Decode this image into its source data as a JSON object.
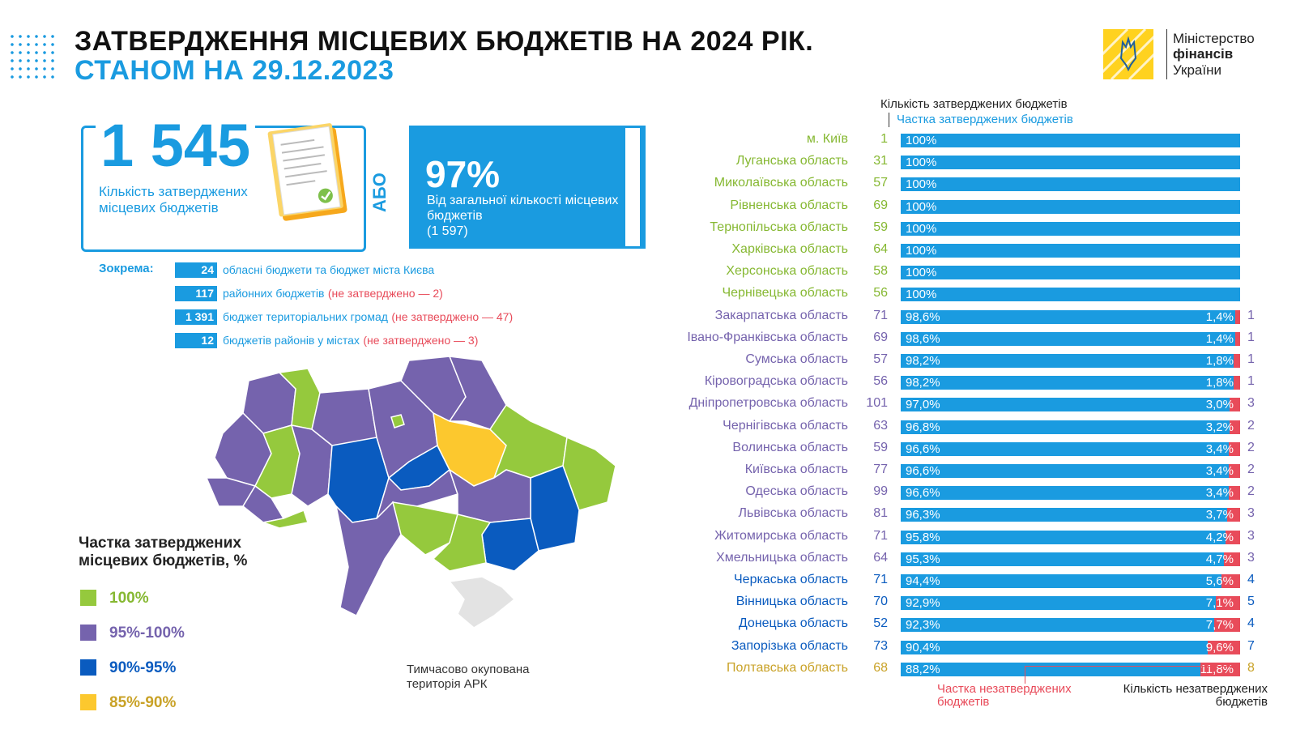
{
  "header": {
    "title_line1": "ЗАТВЕРДЖЕННЯ МІСЦЕВИХ БЮДЖЕТІВ НА 2024 РІК.",
    "title_line2": "СТАНОМ НА 29.12.2023"
  },
  "logo": {
    "line1": "Міністерство",
    "line2": "фінансів",
    "line3": "України",
    "icon": "trident-icon",
    "color": "#ffd21f"
  },
  "summary": {
    "count": "1 545",
    "count_label": "Кількість затверджених місцевих бюджетів",
    "or_label": "АБО",
    "share": "97%",
    "share_label": "Від загальної кількості місцевих бюджетів",
    "share_total": "(1 597)"
  },
  "breakdown": {
    "label": "Зокрема:",
    "items": [
      {
        "value": "24",
        "text": "обласні бюджети та бюджет міста Києва",
        "note": ""
      },
      {
        "value": "117",
        "text": "районних бюджетів",
        "note": "(не затверджено — 2)"
      },
      {
        "value": "1 391",
        "text": "бюджет територіальних громад",
        "note": "(не затверджено — 47)"
      },
      {
        "value": "12",
        "text": "бюджетів районів у містах",
        "note": "(не затверджено — 3)"
      }
    ]
  },
  "map": {
    "legend_title": "Частка затверджених місцевих бюджетів, %",
    "legend": [
      {
        "label": "100%",
        "color": "#95c93d",
        "text_color": "#86b832"
      },
      {
        "label": "95%-100%",
        "color": "#7563ad",
        "text_color": "#7563ad"
      },
      {
        "label": "90%-95%",
        "color": "#0a5bbf",
        "text_color": "#0a5bbf"
      },
      {
        "label": "85%-90%",
        "color": "#fcc82e",
        "text_color": "#c9a227"
      }
    ],
    "occupied_label_1": "Тимчасово окупована",
    "occupied_label_2": "територія АРК",
    "occupied_color": "#e3e3e3"
  },
  "colors": {
    "accent": "#1a9be0",
    "unapproved": "#e84b5a"
  },
  "chart_data": {
    "type": "bar",
    "orientation": "horizontal-stacked",
    "header_count": "Кількість затверджених бюджетів",
    "header_share": "Частка затверджених бюджетів",
    "footer_share_unapproved": "Частка незатверджених бюджетів",
    "footer_count_unapproved": "Кількість незатверджених бюджетів",
    "xlim": [
      0,
      100
    ],
    "rows": [
      {
        "region": "м. Київ",
        "count": "1",
        "approved": 100,
        "approved_label": "100%",
        "unapproved": 0,
        "unapproved_label": "",
        "not_approved": "",
        "group": "100"
      },
      {
        "region": "Луганська область",
        "count": "31",
        "approved": 100,
        "approved_label": "100%",
        "unapproved": 0,
        "unapproved_label": "",
        "not_approved": "",
        "group": "100"
      },
      {
        "region": "Миколаївська область",
        "count": "57",
        "approved": 100,
        "approved_label": "100%",
        "unapproved": 0,
        "unapproved_label": "",
        "not_approved": "",
        "group": "100"
      },
      {
        "region": "Рівненська область",
        "count": "69",
        "approved": 100,
        "approved_label": "100%",
        "unapproved": 0,
        "unapproved_label": "",
        "not_approved": "",
        "group": "100"
      },
      {
        "region": "Тернопільська область",
        "count": "59",
        "approved": 100,
        "approved_label": "100%",
        "unapproved": 0,
        "unapproved_label": "",
        "not_approved": "",
        "group": "100"
      },
      {
        "region": "Харківська область",
        "count": "64",
        "approved": 100,
        "approved_label": "100%",
        "unapproved": 0,
        "unapproved_label": "",
        "not_approved": "",
        "group": "100"
      },
      {
        "region": "Херсонська область",
        "count": "58",
        "approved": 100,
        "approved_label": "100%",
        "unapproved": 0,
        "unapproved_label": "",
        "not_approved": "",
        "group": "100"
      },
      {
        "region": "Чернівецька область",
        "count": "56",
        "approved": 100,
        "approved_label": "100%",
        "unapproved": 0,
        "unapproved_label": "",
        "not_approved": "",
        "group": "100"
      },
      {
        "region": "Закарпатська область",
        "count": "71",
        "approved": 98.6,
        "approved_label": "98,6%",
        "unapproved": 1.4,
        "unapproved_label": "1,4%",
        "not_approved": "1",
        "group": "95"
      },
      {
        "region": "Івано-Франківська область",
        "count": "69",
        "approved": 98.6,
        "approved_label": "98,6%",
        "unapproved": 1.4,
        "unapproved_label": "1,4%",
        "not_approved": "1",
        "group": "95"
      },
      {
        "region": "Сумська область",
        "count": "57",
        "approved": 98.2,
        "approved_label": "98,2%",
        "unapproved": 1.8,
        "unapproved_label": "1,8%",
        "not_approved": "1",
        "group": "95"
      },
      {
        "region": "Кіровоградська область",
        "count": "56",
        "approved": 98.2,
        "approved_label": "98,2%",
        "unapproved": 1.8,
        "unapproved_label": "1,8%",
        "not_approved": "1",
        "group": "95"
      },
      {
        "region": "Дніпропетровська область",
        "count": "101",
        "approved": 97.0,
        "approved_label": "97,0%",
        "unapproved": 3.0,
        "unapproved_label": "3,0%",
        "not_approved": "3",
        "group": "95"
      },
      {
        "region": "Чернігівська область",
        "count": "63",
        "approved": 96.8,
        "approved_label": "96,8%",
        "unapproved": 3.2,
        "unapproved_label": "3,2%",
        "not_approved": "2",
        "group": "95"
      },
      {
        "region": "Волинська область",
        "count": "59",
        "approved": 96.6,
        "approved_label": "96,6%",
        "unapproved": 3.4,
        "unapproved_label": "3,4%",
        "not_approved": "2",
        "group": "95"
      },
      {
        "region": "Київська область",
        "count": "77",
        "approved": 96.6,
        "approved_label": "96,6%",
        "unapproved": 3.4,
        "unapproved_label": "3,4%",
        "not_approved": "2",
        "group": "95"
      },
      {
        "region": "Одеська область",
        "count": "99",
        "approved": 96.6,
        "approved_label": "96,6%",
        "unapproved": 3.4,
        "unapproved_label": "3,4%",
        "not_approved": "2",
        "group": "95"
      },
      {
        "region": "Львівська область",
        "count": "81",
        "approved": 96.3,
        "approved_label": "96,3%",
        "unapproved": 3.7,
        "unapproved_label": "3,7%",
        "not_approved": "3",
        "group": "95"
      },
      {
        "region": "Житомирська область",
        "count": "71",
        "approved": 95.8,
        "approved_label": "95,8%",
        "unapproved": 4.2,
        "unapproved_label": "4,2%",
        "not_approved": "3",
        "group": "95"
      },
      {
        "region": "Хмельницька область",
        "count": "64",
        "approved": 95.3,
        "approved_label": "95,3%",
        "unapproved": 4.7,
        "unapproved_label": "4,7%",
        "not_approved": "3",
        "group": "95"
      },
      {
        "region": "Черкаська область",
        "count": "71",
        "approved": 94.4,
        "approved_label": "94,4%",
        "unapproved": 5.6,
        "unapproved_label": "5,6%",
        "not_approved": "4",
        "group": "90"
      },
      {
        "region": "Вінницька область",
        "count": "70",
        "approved": 92.9,
        "approved_label": "92,9%",
        "unapproved": 7.1,
        "unapproved_label": "7,1%",
        "not_approved": "5",
        "group": "90"
      },
      {
        "region": "Донецька область",
        "count": "52",
        "approved": 92.3,
        "approved_label": "92,3%",
        "unapproved": 7.7,
        "unapproved_label": "7,7%",
        "not_approved": "4",
        "group": "90"
      },
      {
        "region": "Запорізька область",
        "count": "73",
        "approved": 90.4,
        "approved_label": "90,4%",
        "unapproved": 9.6,
        "unapproved_label": "9,6%",
        "not_approved": "7",
        "group": "90"
      },
      {
        "region": "Полтавська область",
        "count": "68",
        "approved": 88.2,
        "approved_label": "88,2%",
        "unapproved": 11.8,
        "unapproved_label": "11,8%",
        "not_approved": "8",
        "group": "85"
      }
    ],
    "group_colors": {
      "100": "#86b832",
      "95": "#7563ad",
      "90": "#0a5bbf",
      "85": "#c9a227"
    }
  }
}
